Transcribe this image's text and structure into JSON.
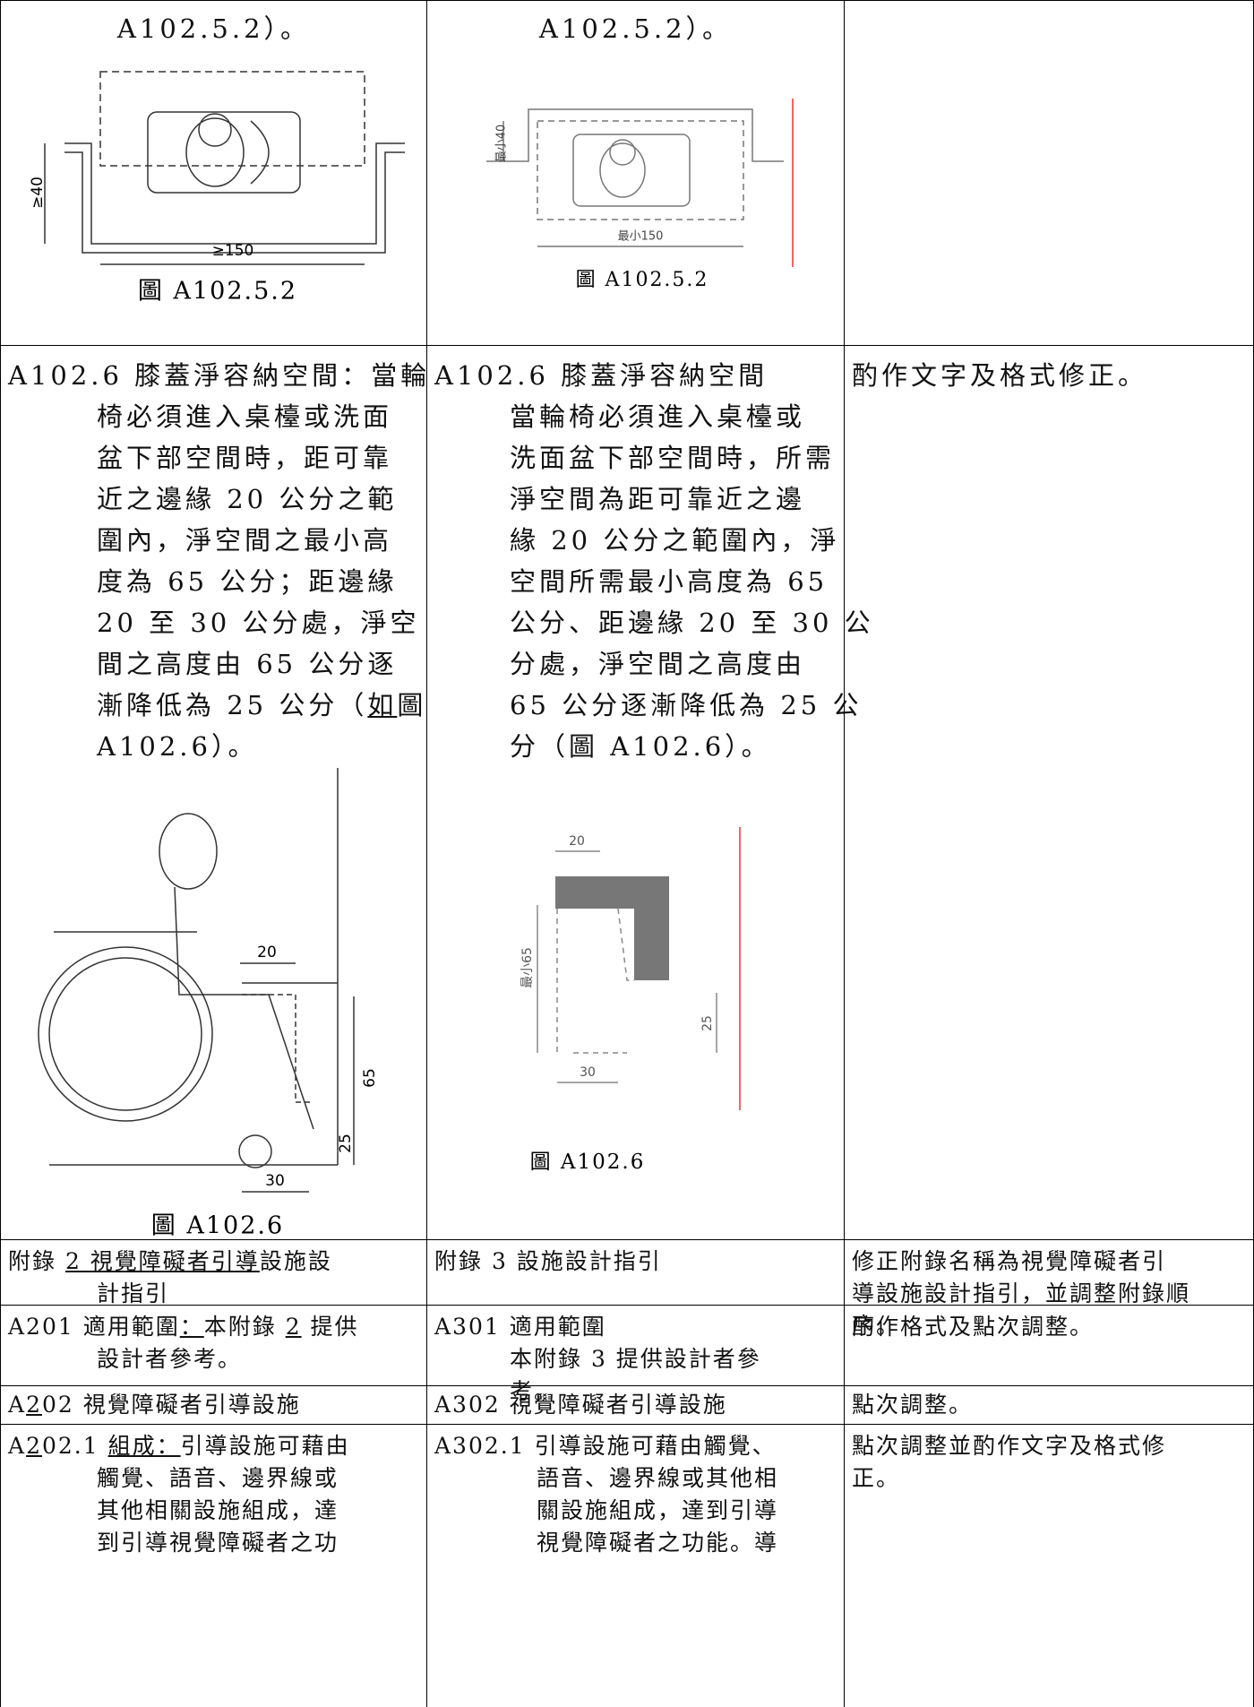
{
  "table": {
    "rows": [
      [
        {
          "lines": [
            "A102.5.2）。"
          ],
          "figure_labels": [
            "≥40",
            "≥150"
          ],
          "caption": "圖 A102.5.2"
        },
        {
          "lines": [
            "A102.5.2）。"
          ],
          "figure_labels": [
            "最小40",
            "最小150"
          ],
          "caption": "圖 A102.5.2"
        }
      ],
      [
        {
          "lines": [
            "A102.6 膝蓋淨容納空間：當輪",
            "椅必須進入桌檯或洗面",
            "盆下部空間時，距可靠",
            "近之邊緣 20 公分之範",
            "圍內，淨空間之最小高",
            "度為 65 公分；距邊緣",
            "20 至 30 公分處，淨空",
            "間之高度由 65 公分逐",
            [
              "漸降低為 25 公分（",
              {
                "text": "如",
                "underline": true
              },
              "圖"
            ],
            "A102.6）。"
          ],
          "figure_labels": [
            "20",
            "65",
            "25",
            "30"
          ],
          "caption": "圖 A102.6"
        },
        {
          "lines": [
            "A102.6 膝蓋淨容納空間",
            "當輪椅必須進入桌檯或",
            "洗面盆下部空間時，所需",
            "淨空間為距可靠近之邊",
            "緣 20 公分之範圍內，淨",
            "空間所需最小高度為 65",
            "公分、距邊緣 20 至 30 公",
            "分處，淨空間之高度由",
            "65 公分逐漸降低為 25 公",
            "分（圖 A102.6）。"
          ],
          "figure_labels": [
            "20",
            "最小65",
            "25",
            "30"
          ],
          "caption": "圖 A102.6"
        },
        {
          "lines": [
            "酌作文字及格式修正。"
          ]
        }
      ],
      [
        {
          "lines": [
            [
              "附錄 ",
              {
                "text": "2 視覺障礙者引導",
                "underline": true
              },
              "設施設"
            ],
            "計指引"
          ]
        },
        {
          "lines": [
            "附錄 3 設施設計指引"
          ]
        },
        {
          "lines": [
            "修正附錄名稱為視覺障礙者引",
            "導設施設計指引，並調整附錄順",
            "序。"
          ]
        }
      ],
      [
        {
          "lines": [
            [
              "A201 適用範圍",
              {
                "text": "：",
                "underline": true
              },
              "本附錄 ",
              {
                "text": "2",
                "underline": true
              },
              " 提供"
            ],
            "設計者參考。"
          ]
        },
        {
          "lines": [
            "A301 適用範圍",
            "本附錄 3 提供設計者參",
            "考。"
          ]
        },
        {
          "lines": [
            "酌作格式及點次調整。"
          ]
        }
      ],
      [
        {
          "lines": [
            [
              "A",
              {
                "text": "2",
                "underline": true
              },
              "02 視覺障礙者引導設施"
            ]
          ]
        },
        {
          "lines": [
            "A302 視覺障礙者引導設施"
          ]
        },
        {
          "lines": [
            "點次調整。"
          ]
        }
      ],
      [
        {
          "lines": [
            [
              "A",
              {
                "text": "2",
                "underline": true
              },
              "02.1 ",
              {
                "text": "組成：",
                "underline": true
              },
              "引導設施可藉由"
            ],
            "觸覺、語音、邊界線或",
            "其他相關設施組成，達",
            "到引導視覺障礙者之功"
          ]
        },
        {
          "lines": [
            "A302.1 引導設施可藉由觸覺、",
            "語音、邊界線或其他相",
            "關設施組成，達到引導",
            "視覺障礙者之功能。導"
          ]
        },
        {
          "lines": [
            "點次調整並酌作文字及格式修",
            "正。"
          ]
        }
      ]
    ]
  }
}
